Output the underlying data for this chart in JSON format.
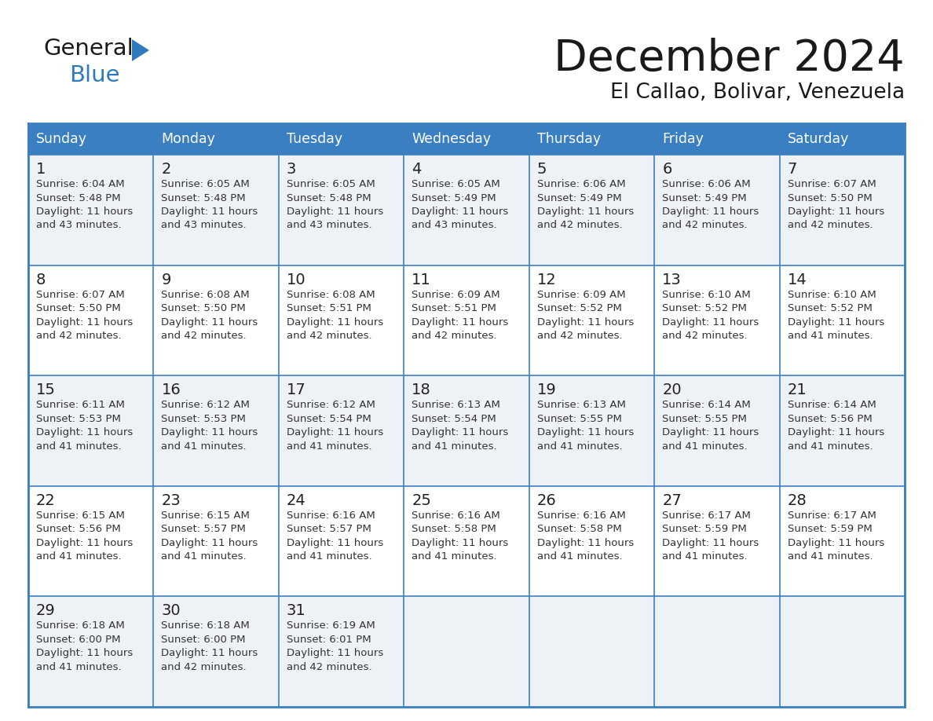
{
  "title": "December 2024",
  "subtitle": "El Callao, Bolivar, Venezuela",
  "days_of_week": [
    "Sunday",
    "Monday",
    "Tuesday",
    "Wednesday",
    "Thursday",
    "Friday",
    "Saturday"
  ],
  "header_bg": "#3a7fc1",
  "header_text": "#ffffff",
  "row_bg_light": "#eef2f7",
  "row_bg_white": "#ffffff",
  "border_color": "#3a7fc1",
  "day_num_color": "#222222",
  "cell_text_color": "#333333",
  "title_color": "#1a1a1a",
  "subtitle_color": "#1a1a1a",
  "logo_general_color": "#1a1a1a",
  "logo_blue_color": "#2e7abf",
  "logo_triangle_color": "#2e7abf",
  "calendar": [
    [
      {
        "day": 1,
        "sunrise": "6:04 AM",
        "sunset": "5:48 PM",
        "daylight_h": "11 hours",
        "daylight_m": "and 43 minutes."
      },
      {
        "day": 2,
        "sunrise": "6:05 AM",
        "sunset": "5:48 PM",
        "daylight_h": "11 hours",
        "daylight_m": "and 43 minutes."
      },
      {
        "day": 3,
        "sunrise": "6:05 AM",
        "sunset": "5:48 PM",
        "daylight_h": "11 hours",
        "daylight_m": "and 43 minutes."
      },
      {
        "day": 4,
        "sunrise": "6:05 AM",
        "sunset": "5:49 PM",
        "daylight_h": "11 hours",
        "daylight_m": "and 43 minutes."
      },
      {
        "day": 5,
        "sunrise": "6:06 AM",
        "sunset": "5:49 PM",
        "daylight_h": "11 hours",
        "daylight_m": "and 42 minutes."
      },
      {
        "day": 6,
        "sunrise": "6:06 AM",
        "sunset": "5:49 PM",
        "daylight_h": "11 hours",
        "daylight_m": "and 42 minutes."
      },
      {
        "day": 7,
        "sunrise": "6:07 AM",
        "sunset": "5:50 PM",
        "daylight_h": "11 hours",
        "daylight_m": "and 42 minutes."
      }
    ],
    [
      {
        "day": 8,
        "sunrise": "6:07 AM",
        "sunset": "5:50 PM",
        "daylight_h": "11 hours",
        "daylight_m": "and 42 minutes."
      },
      {
        "day": 9,
        "sunrise": "6:08 AM",
        "sunset": "5:50 PM",
        "daylight_h": "11 hours",
        "daylight_m": "and 42 minutes."
      },
      {
        "day": 10,
        "sunrise": "6:08 AM",
        "sunset": "5:51 PM",
        "daylight_h": "11 hours",
        "daylight_m": "and 42 minutes."
      },
      {
        "day": 11,
        "sunrise": "6:09 AM",
        "sunset": "5:51 PM",
        "daylight_h": "11 hours",
        "daylight_m": "and 42 minutes."
      },
      {
        "day": 12,
        "sunrise": "6:09 AM",
        "sunset": "5:52 PM",
        "daylight_h": "11 hours",
        "daylight_m": "and 42 minutes."
      },
      {
        "day": 13,
        "sunrise": "6:10 AM",
        "sunset": "5:52 PM",
        "daylight_h": "11 hours",
        "daylight_m": "and 42 minutes."
      },
      {
        "day": 14,
        "sunrise": "6:10 AM",
        "sunset": "5:52 PM",
        "daylight_h": "11 hours",
        "daylight_m": "and 41 minutes."
      }
    ],
    [
      {
        "day": 15,
        "sunrise": "6:11 AM",
        "sunset": "5:53 PM",
        "daylight_h": "11 hours",
        "daylight_m": "and 41 minutes."
      },
      {
        "day": 16,
        "sunrise": "6:12 AM",
        "sunset": "5:53 PM",
        "daylight_h": "11 hours",
        "daylight_m": "and 41 minutes."
      },
      {
        "day": 17,
        "sunrise": "6:12 AM",
        "sunset": "5:54 PM",
        "daylight_h": "11 hours",
        "daylight_m": "and 41 minutes."
      },
      {
        "day": 18,
        "sunrise": "6:13 AM",
        "sunset": "5:54 PM",
        "daylight_h": "11 hours",
        "daylight_m": "and 41 minutes."
      },
      {
        "day": 19,
        "sunrise": "6:13 AM",
        "sunset": "5:55 PM",
        "daylight_h": "11 hours",
        "daylight_m": "and 41 minutes."
      },
      {
        "day": 20,
        "sunrise": "6:14 AM",
        "sunset": "5:55 PM",
        "daylight_h": "11 hours",
        "daylight_m": "and 41 minutes."
      },
      {
        "day": 21,
        "sunrise": "6:14 AM",
        "sunset": "5:56 PM",
        "daylight_h": "11 hours",
        "daylight_m": "and 41 minutes."
      }
    ],
    [
      {
        "day": 22,
        "sunrise": "6:15 AM",
        "sunset": "5:56 PM",
        "daylight_h": "11 hours",
        "daylight_m": "and 41 minutes."
      },
      {
        "day": 23,
        "sunrise": "6:15 AM",
        "sunset": "5:57 PM",
        "daylight_h": "11 hours",
        "daylight_m": "and 41 minutes."
      },
      {
        "day": 24,
        "sunrise": "6:16 AM",
        "sunset": "5:57 PM",
        "daylight_h": "11 hours",
        "daylight_m": "and 41 minutes."
      },
      {
        "day": 25,
        "sunrise": "6:16 AM",
        "sunset": "5:58 PM",
        "daylight_h": "11 hours",
        "daylight_m": "and 41 minutes."
      },
      {
        "day": 26,
        "sunrise": "6:16 AM",
        "sunset": "5:58 PM",
        "daylight_h": "11 hours",
        "daylight_m": "and 41 minutes."
      },
      {
        "day": 27,
        "sunrise": "6:17 AM",
        "sunset": "5:59 PM",
        "daylight_h": "11 hours",
        "daylight_m": "and 41 minutes."
      },
      {
        "day": 28,
        "sunrise": "6:17 AM",
        "sunset": "5:59 PM",
        "daylight_h": "11 hours",
        "daylight_m": "and 41 minutes."
      }
    ],
    [
      {
        "day": 29,
        "sunrise": "6:18 AM",
        "sunset": "6:00 PM",
        "daylight_h": "11 hours",
        "daylight_m": "and 41 minutes."
      },
      {
        "day": 30,
        "sunrise": "6:18 AM",
        "sunset": "6:00 PM",
        "daylight_h": "11 hours",
        "daylight_m": "and 42 minutes."
      },
      {
        "day": 31,
        "sunrise": "6:19 AM",
        "sunset": "6:01 PM",
        "daylight_h": "11 hours",
        "daylight_m": "and 42 minutes."
      },
      null,
      null,
      null,
      null
    ]
  ]
}
